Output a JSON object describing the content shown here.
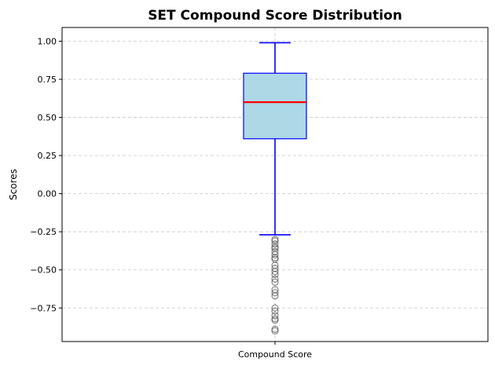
{
  "chart_data": {
    "type": "box",
    "title": "SET Compound Score Distribution",
    "xlabel": "",
    "ylabel": "Scores",
    "categories": [
      "Compound Score"
    ],
    "ylim": [
      -0.97,
      1.09
    ],
    "yticks": [
      1.0,
      0.75,
      0.5,
      0.25,
      0.0,
      -0.25,
      -0.5,
      -0.75
    ],
    "ytick_labels": [
      "1.00",
      "0.75",
      "0.50",
      "0.25",
      "0.00",
      "−0.25",
      "−0.50",
      "−0.75"
    ],
    "grid": true,
    "box": {
      "q1": 0.36,
      "median": 0.6,
      "q3": 0.79,
      "whisker_low": -0.27,
      "whisker_high": 0.99,
      "outliers": [
        -0.3,
        -0.31,
        -0.33,
        -0.35,
        -0.36,
        -0.38,
        -0.4,
        -0.42,
        -0.43,
        -0.47,
        -0.49,
        -0.51,
        -0.53,
        -0.56,
        -0.58,
        -0.63,
        -0.65,
        -0.67,
        -0.75,
        -0.77,
        -0.8,
        -0.82,
        -0.83,
        -0.89,
        -0.9
      ]
    },
    "colors": {
      "box_fill": "#add8e6",
      "box_edge": "#0000ff",
      "whisker": "#0000ff",
      "median": "#ff0000",
      "outlier_edge": "#555555",
      "grid": "#c8c8c8"
    }
  }
}
